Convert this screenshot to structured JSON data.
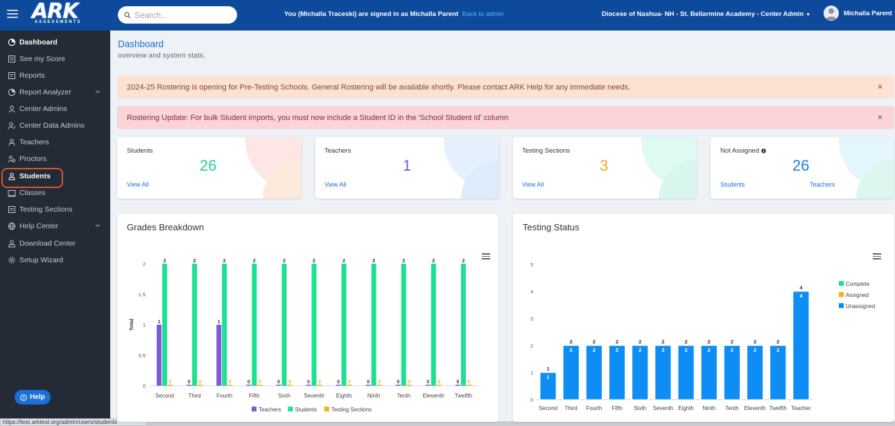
{
  "header": {
    "logo_text": "ARK",
    "logo_sub": "ASSESSMENTS",
    "search_placeholder": "Search...",
    "signed_in_text": "You (Michalla Traceski) are signed in as Michalla Parent",
    "back_to_admin": "Back to admin",
    "org": "Diocese of Nashua- NH - St. Bellarmine Academy - Center Admin",
    "user_name": "Michalla Parent"
  },
  "sidebar": {
    "items": [
      {
        "label": "Dashboard",
        "icon": "dashboard-icon"
      },
      {
        "label": "See my Score",
        "icon": "score-icon"
      },
      {
        "label": "Reports",
        "icon": "reports-icon"
      },
      {
        "label": "Report Analyzer",
        "icon": "analyzer-icon"
      },
      {
        "label": "Center Admins",
        "icon": "user-icon"
      },
      {
        "label": "Center Data Admins",
        "icon": "user-edit-icon"
      },
      {
        "label": "Teachers",
        "icon": "teacher-icon"
      },
      {
        "label": "Proctors",
        "icon": "proctor-icon"
      },
      {
        "label": "Students",
        "icon": "students-icon"
      },
      {
        "label": "Classes",
        "icon": "classes-icon"
      },
      {
        "label": "Testing Sections",
        "icon": "sections-icon"
      },
      {
        "label": "Help Center",
        "icon": "globe-icon"
      },
      {
        "label": "Download Center",
        "icon": "download-icon"
      },
      {
        "label": "Setup Wizard",
        "icon": "gear-icon"
      }
    ],
    "help_label": "Help"
  },
  "status_url": "https://test.arktest.org/admin/users/students",
  "main": {
    "title": "Dashboard",
    "subtitle": "overview and system stats.",
    "alert_warning": "2024-25 Rostering is opening for Pre-Testing Schools. General Rostering will be available shortly. Please contact ARK Help for any immediate needs.",
    "alert_danger": "Rostering Update: For bulk Student imports, you must now include a Student ID in the 'School Student Id' column",
    "close_symbol": "×"
  },
  "cards": [
    {
      "label": "Students",
      "value": "26",
      "link": "View All",
      "color": "#22d29a"
    },
    {
      "label": "Teachers",
      "value": "1",
      "link": "View All",
      "color": "#6b5fd6"
    },
    {
      "label": "Testing Sections",
      "value": "3",
      "link": "View All",
      "color": "#f5a623"
    },
    {
      "label": "Not Assigned",
      "value": "26",
      "link_students": "Students",
      "link_teachers": "Teachers",
      "color": "#1b7fe0"
    }
  ],
  "panels": {
    "grades_title": "Grades Breakdown",
    "testing_title": "Testing Status"
  },
  "chart_data": [
    {
      "type": "bar",
      "title": "Grades Breakdown",
      "ylabel": "Total",
      "xlabel": "",
      "ylim": [
        0,
        2
      ],
      "yticks": [
        "0",
        "0.5",
        "1",
        "1.5",
        "2"
      ],
      "categories": [
        "Second",
        "Third",
        "Fourth",
        "Fifth",
        "Sixth",
        "Seventh",
        "Eighth",
        "Ninth",
        "Tenth",
        "Eleventh",
        "Twelfth"
      ],
      "series": [
        {
          "name": "Teachers",
          "color": "#7b5cd6",
          "values": [
            1,
            0,
            1,
            0,
            0,
            0,
            0,
            0,
            0,
            0,
            0
          ]
        },
        {
          "name": "Students",
          "color": "#1ee092",
          "values": [
            2,
            2,
            2,
            2,
            2,
            2,
            2,
            2,
            2,
            2,
            2
          ]
        },
        {
          "name": "Testing Sections",
          "color": "#f7b21a",
          "values": [
            0,
            0,
            0,
            0,
            0,
            0,
            0,
            0,
            0,
            0,
            0
          ]
        }
      ],
      "legend": "bottom"
    },
    {
      "type": "bar",
      "stacked": true,
      "title": "Testing Status",
      "ylim": [
        0,
        5
      ],
      "yticks": [
        "0",
        "1",
        "2",
        "3",
        "4",
        "5"
      ],
      "categories": [
        "Second",
        "Third",
        "Fourth",
        "Fifth",
        "Sixth",
        "Seventh",
        "Eighth",
        "Ninth",
        "Tenth",
        "Eleventh",
        "Twelfth",
        "Teacher"
      ],
      "series": [
        {
          "name": "Complete",
          "color": "#1ee092",
          "values": [
            0,
            0,
            0,
            0,
            0,
            0,
            0,
            0,
            0,
            0,
            0,
            0
          ]
        },
        {
          "name": "Assigned",
          "color": "#f7b21a",
          "values": [
            0,
            0,
            0,
            0,
            0,
            0,
            0,
            0,
            0,
            0,
            0,
            0
          ]
        },
        {
          "name": "Unassigned",
          "color": "#0e8ef5",
          "values": [
            1,
            2,
            2,
            2,
            2,
            2,
            2,
            2,
            2,
            2,
            2,
            4
          ]
        }
      ],
      "totals": [
        1,
        2,
        2,
        2,
        2,
        2,
        2,
        2,
        2,
        2,
        2,
        4
      ],
      "legend": "right"
    }
  ]
}
